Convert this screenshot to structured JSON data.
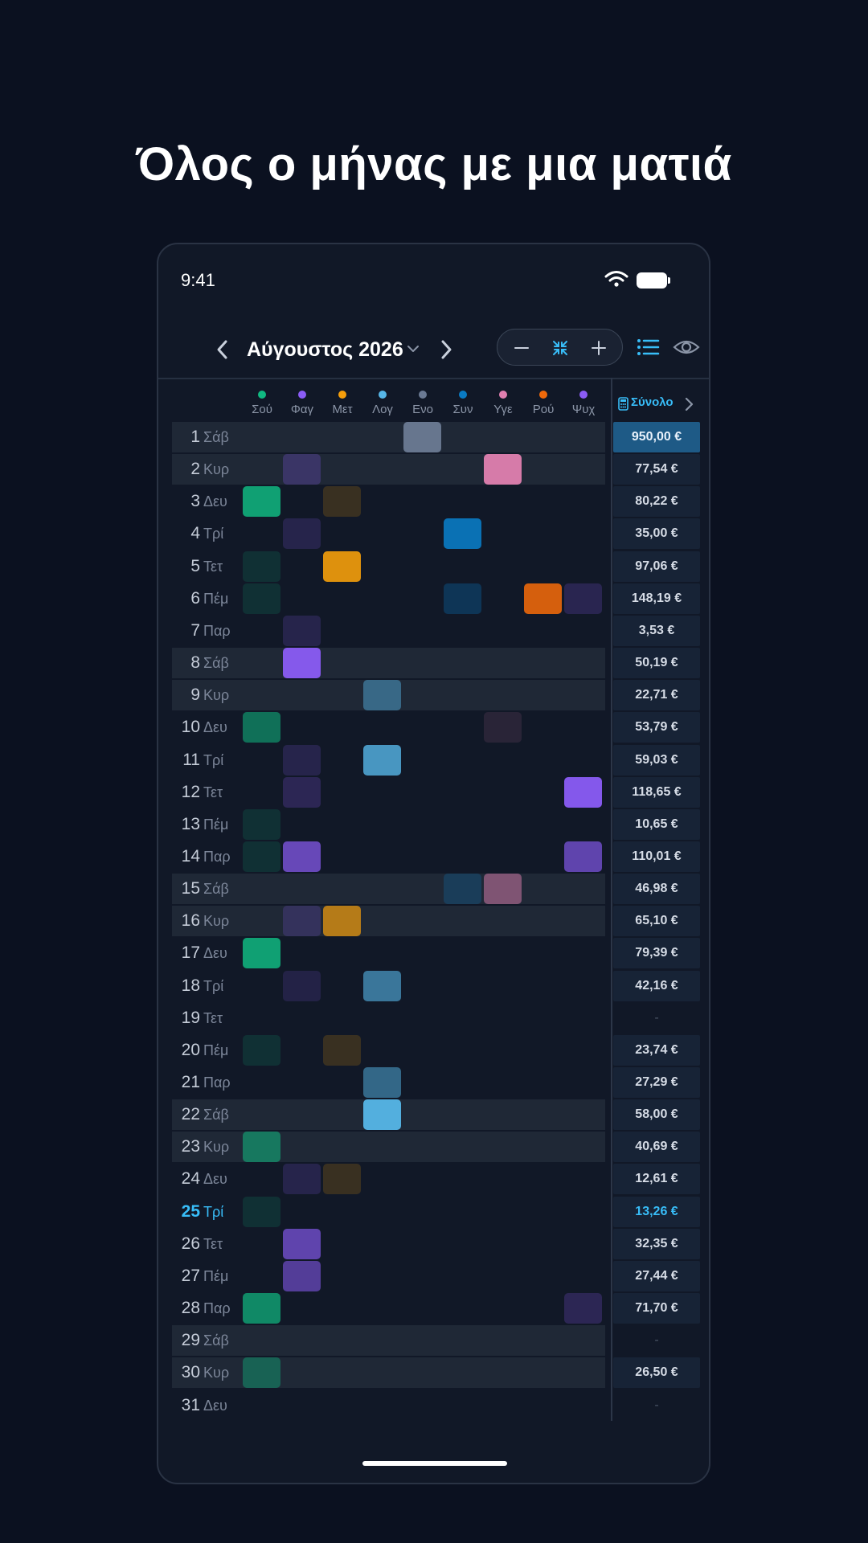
{
  "headline": "Όλος ο μήνας με μια ματιά",
  "status_bar": {
    "time": "9:41"
  },
  "nav": {
    "month_label": "Αύγουστος 2026"
  },
  "categories": [
    {
      "label": "Σού",
      "color": "#10b981"
    },
    {
      "label": "Φαγ",
      "color": "#8b5cf6"
    },
    {
      "label": "Μετ",
      "color": "#f59e0b"
    },
    {
      "label": "Λογ",
      "color": "#56b6e8"
    },
    {
      "label": "Ενο",
      "color": "#6b7a94"
    },
    {
      "label": "Συν",
      "color": "#0a7bc4"
    },
    {
      "label": "Υγε",
      "color": "#e07fb0"
    },
    {
      "label": "Ρού",
      "color": "#f0690a"
    },
    {
      "label": "Ψυχ",
      "color": "#8b5cf6"
    }
  ],
  "total_header": {
    "label": "Σύνολο"
  },
  "days": [
    {
      "num": "1",
      "name": "Σάβ",
      "band": true,
      "total": "950,00 €",
      "highlight": true,
      "cells": [
        [
          4,
          0.95
        ]
      ]
    },
    {
      "num": "2",
      "name": "Κυρ",
      "band": true,
      "total": "77,54 €",
      "cells": [
        [
          1,
          0.25
        ],
        [
          6,
          0.95
        ]
      ]
    },
    {
      "num": "3",
      "name": "Δευ",
      "total": "80,22 €",
      "cells": [
        [
          0,
          0.85
        ],
        [
          2,
          0.18
        ]
      ]
    },
    {
      "num": "4",
      "name": "Τρί",
      "total": "35,00 €",
      "cells": [
        [
          1,
          0.18
        ],
        [
          5,
          0.9
        ]
      ]
    },
    {
      "num": "5",
      "name": "Τετ",
      "total": "97,06 €",
      "cells": [
        [
          0,
          0.15
        ],
        [
          2,
          0.9
        ]
      ]
    },
    {
      "num": "6",
      "name": "Πέμ",
      "total": "148,19 €",
      "cells": [
        [
          0,
          0.15
        ],
        [
          5,
          0.3
        ],
        [
          7,
          0.88
        ],
        [
          8,
          0.2
        ]
      ]
    },
    {
      "num": "7",
      "name": "Παρ",
      "total": "3,53 €",
      "cells": [
        [
          1,
          0.18
        ]
      ]
    },
    {
      "num": "8",
      "name": "Σάβ",
      "band": true,
      "total": "50,19 €",
      "cells": [
        [
          1,
          0.95
        ]
      ]
    },
    {
      "num": "9",
      "name": "Κυρ",
      "band": true,
      "total": "22,71 €",
      "cells": [
        [
          3,
          0.45
        ]
      ]
    },
    {
      "num": "10",
      "name": "Δευ",
      "total": "53,79 €",
      "cells": [
        [
          0,
          0.55
        ],
        [
          6,
          0.12
        ]
      ]
    },
    {
      "num": "11",
      "name": "Τρί",
      "total": "59,03 €",
      "cells": [
        [
          1,
          0.18
        ],
        [
          3,
          0.8
        ]
      ]
    },
    {
      "num": "12",
      "name": "Τετ",
      "total": "118,65 €",
      "cells": [
        [
          1,
          0.22
        ],
        [
          8,
          0.95
        ]
      ]
    },
    {
      "num": "13",
      "name": "Πέμ",
      "total": "10,65 €",
      "cells": [
        [
          0,
          0.15
        ]
      ]
    },
    {
      "num": "14",
      "name": "Παρ",
      "total": "110,01 €",
      "cells": [
        [
          0,
          0.15
        ],
        [
          1,
          0.7
        ],
        [
          8,
          0.65
        ]
      ]
    },
    {
      "num": "15",
      "name": "Σάβ",
      "band": true,
      "total": "46,98 €",
      "cells": [
        [
          5,
          0.25
        ],
        [
          6,
          0.5
        ]
      ]
    },
    {
      "num": "16",
      "name": "Κυρ",
      "band": true,
      "total": "65,10 €",
      "cells": [
        [
          1,
          0.2
        ],
        [
          2,
          0.7
        ]
      ]
    },
    {
      "num": "17",
      "name": "Δευ",
      "total": "79,39 €",
      "cells": [
        [
          0,
          0.85
        ]
      ]
    },
    {
      "num": "18",
      "name": "Τρί",
      "total": "42,16 €",
      "cells": [
        [
          1,
          0.15
        ],
        [
          3,
          0.6
        ]
      ]
    },
    {
      "num": "19",
      "name": "Τετ",
      "total": "-",
      "empty": true,
      "cells": []
    },
    {
      "num": "20",
      "name": "Πέμ",
      "total": "23,74 €",
      "cells": [
        [
          0,
          0.15
        ],
        [
          2,
          0.18
        ]
      ]
    },
    {
      "num": "21",
      "name": "Παρ",
      "total": "27,29 €",
      "cells": [
        [
          3,
          0.5
        ]
      ]
    },
    {
      "num": "22",
      "name": "Σάβ",
      "band": true,
      "total": "58,00 €",
      "cells": [
        [
          3,
          0.95
        ]
      ]
    },
    {
      "num": "23",
      "name": "Κυρ",
      "band": true,
      "total": "40,69 €",
      "cells": [
        [
          0,
          0.55
        ]
      ]
    },
    {
      "num": "24",
      "name": "Δευ",
      "total": "12,61 €",
      "cells": [
        [
          1,
          0.18
        ],
        [
          2,
          0.18
        ]
      ]
    },
    {
      "num": "25",
      "name": "Τρί",
      "today": true,
      "total": "13,26 €",
      "cells": [
        [
          0,
          0.15
        ]
      ]
    },
    {
      "num": "26",
      "name": "Τετ",
      "total": "32,35 €",
      "cells": [
        [
          1,
          0.65
        ]
      ]
    },
    {
      "num": "27",
      "name": "Πέμ",
      "total": "27,44 €",
      "cells": [
        [
          1,
          0.55
        ]
      ]
    },
    {
      "num": "28",
      "name": "Παρ",
      "total": "71,70 €",
      "cells": [
        [
          0,
          0.7
        ],
        [
          8,
          0.22
        ]
      ]
    },
    {
      "num": "29",
      "name": "Σάβ",
      "band": true,
      "total": "-",
      "empty": true,
      "cells": []
    },
    {
      "num": "30",
      "name": "Κυρ",
      "band": true,
      "total": "26,50 €",
      "cells": [
        [
          0,
          0.4
        ]
      ]
    },
    {
      "num": "31",
      "name": "Δευ",
      "total": "-",
      "empty": true,
      "cells": []
    }
  ]
}
